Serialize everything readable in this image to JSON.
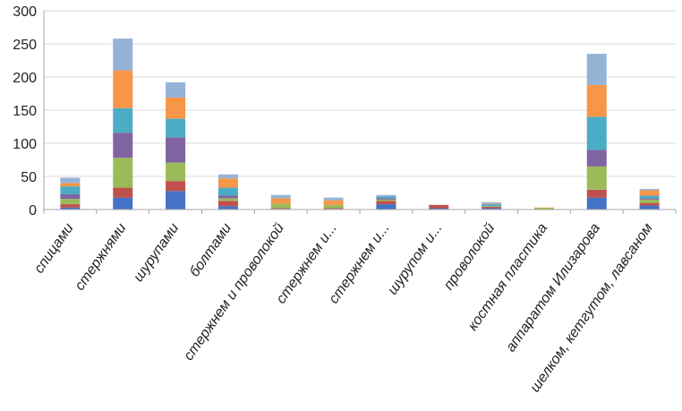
{
  "chart_data": {
    "type": "bar",
    "stacked": true,
    "categories": [
      "спицами",
      "стержнями",
      "шурупами",
      "болтами",
      "стержнем и проволокой",
      "стержнем и...",
      "стержнем и...",
      "шурупом и...",
      "проволокой",
      "костная пластика",
      "аппаратом Илизарова",
      "шелком, кетгутом, лавсаном"
    ],
    "ylim": [
      0,
      300
    ],
    "yticks": [
      0,
      50,
      100,
      150,
      200,
      250,
      300
    ],
    "grid": true,
    "series": [
      {
        "color": "#4472C4",
        "values": [
          3,
          18,
          28,
          5,
          1,
          1,
          8,
          2,
          2,
          0,
          18,
          6
        ]
      },
      {
        "color": "#C0504D",
        "values": [
          5,
          15,
          15,
          8,
          1,
          1,
          5,
          5,
          2,
          0,
          12,
          4
        ]
      },
      {
        "color": "#9BBB59",
        "values": [
          8,
          45,
          28,
          4,
          7,
          5,
          2,
          0,
          1,
          2,
          35,
          5
        ]
      },
      {
        "color": "#8064A2",
        "values": [
          7,
          38,
          38,
          4,
          0,
          0,
          2,
          0,
          0,
          0,
          25,
          2
        ]
      },
      {
        "color": "#4BACC6",
        "values": [
          12,
          37,
          28,
          12,
          0,
          0,
          3,
          0,
          3,
          0,
          50,
          4
        ]
      },
      {
        "color": "#F79646",
        "values": [
          5,
          57,
          32,
          14,
          8,
          7,
          0,
          0,
          1,
          1,
          48,
          8
        ]
      },
      {
        "color": "#95B3D7",
        "values": [
          8,
          48,
          23,
          6,
          5,
          4,
          2,
          0,
          2,
          0,
          47,
          2
        ]
      }
    ]
  }
}
